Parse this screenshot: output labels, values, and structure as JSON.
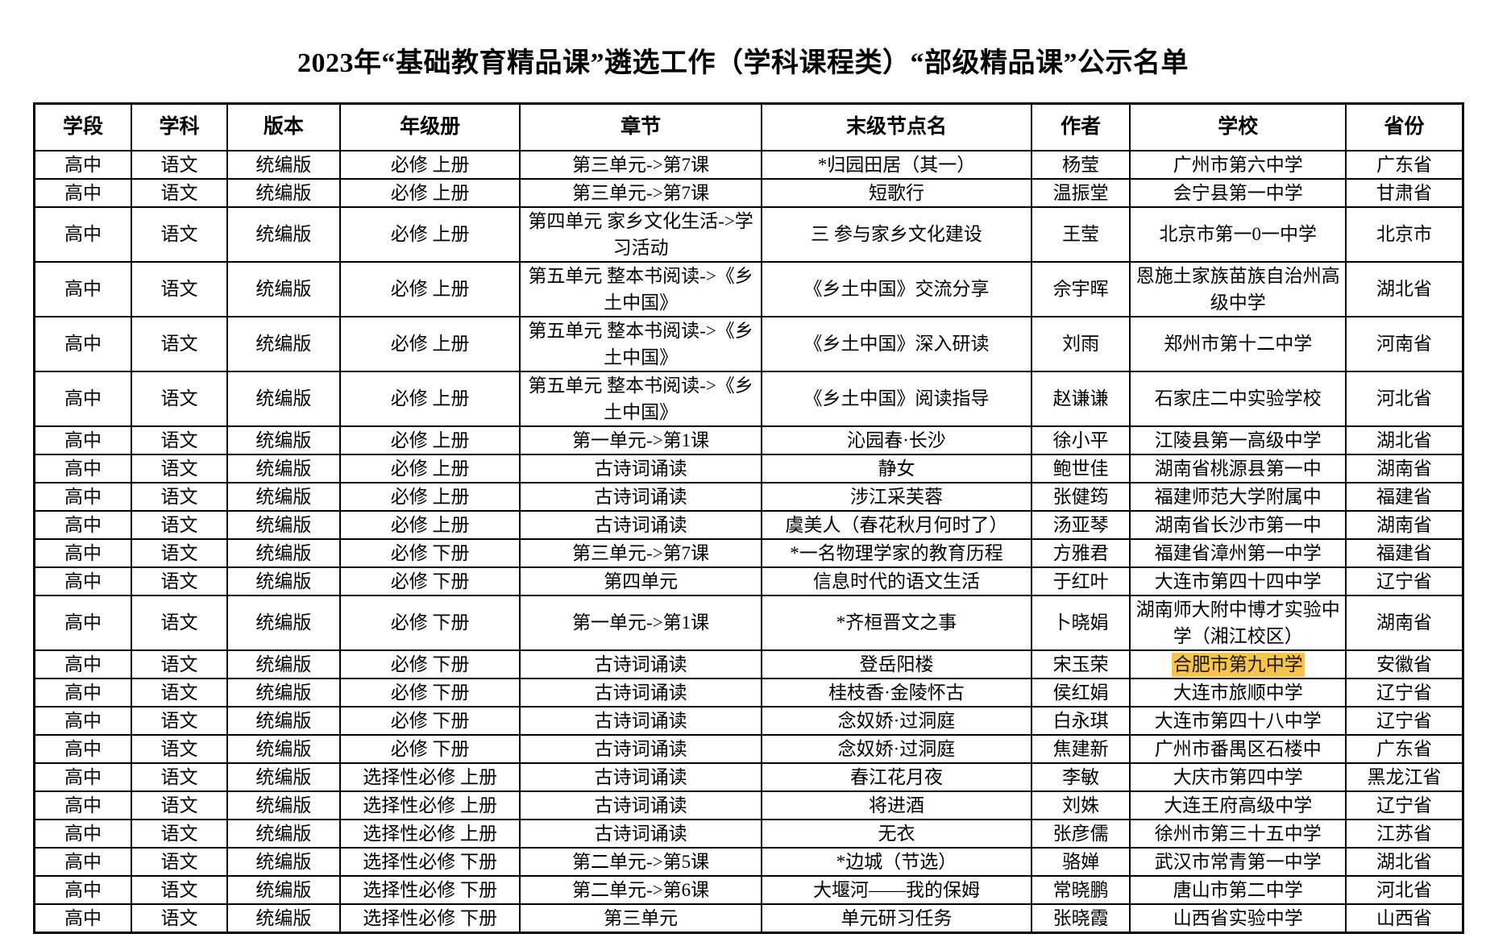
{
  "page": {
    "title": "2023年“基础教育精品课”遴选工作（学科课程类）“部级精品课”公示名单"
  },
  "table": {
    "columns": [
      {
        "key": "stage",
        "label": "学段"
      },
      {
        "key": "subject",
        "label": "学科"
      },
      {
        "key": "edition",
        "label": "版本"
      },
      {
        "key": "volume",
        "label": "年级册"
      },
      {
        "key": "chapter",
        "label": "章节"
      },
      {
        "key": "node",
        "label": "末级节点名"
      },
      {
        "key": "author",
        "label": "作者"
      },
      {
        "key": "school",
        "label": "学校"
      },
      {
        "key": "province",
        "label": "省份"
      }
    ],
    "rows": [
      [
        "高中",
        "语文",
        "统编版",
        "必修 上册",
        "第三单元->第7课",
        "*归园田居（其一）",
        "杨莹",
        "广州市第六中学",
        "广东省"
      ],
      [
        "高中",
        "语文",
        "统编版",
        "必修 上册",
        "第三单元->第7课",
        "短歌行",
        "温振堂",
        "会宁县第一中学",
        "甘肃省"
      ],
      [
        "高中",
        "语文",
        "统编版",
        "必修 上册",
        "第四单元 家乡文化生活->学习活动",
        "三 参与家乡文化建设",
        "王莹",
        "北京市第一0一中学",
        "北京市"
      ],
      [
        "高中",
        "语文",
        "统编版",
        "必修 上册",
        "第五单元 整本书阅读->《乡土中国》",
        "《乡土中国》交流分享",
        "佘宇晖",
        "恩施土家族苗族自治州高级中学",
        "湖北省"
      ],
      [
        "高中",
        "语文",
        "统编版",
        "必修 上册",
        "第五单元 整本书阅读->《乡土中国》",
        "《乡土中国》深入研读",
        "刘雨",
        "郑州市第十二中学",
        "河南省"
      ],
      [
        "高中",
        "语文",
        "统编版",
        "必修 上册",
        "第五单元 整本书阅读->《乡土中国》",
        "《乡土中国》阅读指导",
        "赵谦谦",
        "石家庄二中实验学校",
        "河北省"
      ],
      [
        "高中",
        "语文",
        "统编版",
        "必修 上册",
        "第一单元->第1课",
        "沁园春·长沙",
        "徐小平",
        "江陵县第一高级中学",
        "湖北省"
      ],
      [
        "高中",
        "语文",
        "统编版",
        "必修 上册",
        "古诗词诵读",
        "静女",
        "鲍世佳",
        "湖南省桃源县第一中",
        "湖南省"
      ],
      [
        "高中",
        "语文",
        "统编版",
        "必修 上册",
        "古诗词诵读",
        "涉江采芙蓉",
        "张健筠",
        "福建师范大学附属中",
        "福建省"
      ],
      [
        "高中",
        "语文",
        "统编版",
        "必修 上册",
        "古诗词诵读",
        "虞美人（春花秋月何时了）",
        "汤亚琴",
        "湖南省长沙市第一中",
        "湖南省"
      ],
      [
        "高中",
        "语文",
        "统编版",
        "必修 下册",
        "第三单元->第7课",
        "*一名物理学家的教育历程",
        "方雅君",
        "福建省漳州第一中学",
        "福建省"
      ],
      [
        "高中",
        "语文",
        "统编版",
        "必修 下册",
        "第四单元",
        "信息时代的语文生活",
        "于红叶",
        "大连市第四十四中学",
        "辽宁省"
      ],
      [
        "高中",
        "语文",
        "统编版",
        "必修 下册",
        "第一单元->第1课",
        "*齐桓晋文之事",
        "卜晓娟",
        "湖南师大附中博才实验中学（湘江校区）",
        "湖南省"
      ],
      [
        "高中",
        "语文",
        "统编版",
        "必修 下册",
        "古诗词诵读",
        "登岳阳楼",
        "宋玉荣",
        "合肥市第九中学",
        "安徽省"
      ],
      [
        "高中",
        "语文",
        "统编版",
        "必修 下册",
        "古诗词诵读",
        "桂枝香·金陵怀古",
        "侯红娟",
        "大连市旅顺中学",
        "辽宁省"
      ],
      [
        "高中",
        "语文",
        "统编版",
        "必修 下册",
        "古诗词诵读",
        "念奴娇·过洞庭",
        "白永琪",
        "大连市第四十八中学",
        "辽宁省"
      ],
      [
        "高中",
        "语文",
        "统编版",
        "必修 下册",
        "古诗词诵读",
        "念奴娇·过洞庭",
        "焦建新",
        "广州市番禺区石楼中",
        "广东省"
      ],
      [
        "高中",
        "语文",
        "统编版",
        "选择性必修 上册",
        "古诗词诵读",
        "春江花月夜",
        "李敏",
        "大庆市第四中学",
        "黑龙江省"
      ],
      [
        "高中",
        "语文",
        "统编版",
        "选择性必修 上册",
        "古诗词诵读",
        "将进酒",
        "刘姝",
        "大连王府高级中学",
        "辽宁省"
      ],
      [
        "高中",
        "语文",
        "统编版",
        "选择性必修 上册",
        "古诗词诵读",
        "无衣",
        "张彦儒",
        "徐州市第三十五中学",
        "江苏省"
      ],
      [
        "高中",
        "语文",
        "统编版",
        "选择性必修 下册",
        "第二单元->第5课",
        "*边城（节选）",
        "骆婵",
        "武汉市常青第一中学",
        "湖北省"
      ],
      [
        "高中",
        "语文",
        "统编版",
        "选择性必修 下册",
        "第二单元->第6课",
        "大堰河——我的保姆",
        "常晓鹏",
        "唐山市第二中学",
        "河北省"
      ],
      [
        "高中",
        "语文",
        "统编版",
        "选择性必修 下册",
        "第三单元",
        "单元研习任务",
        "张晓霞",
        "山西省实验中学",
        "山西省"
      ]
    ],
    "highlight": {
      "row": 13,
      "col": 7,
      "color": "#F9C44E",
      "text_color": "#1a1a1a"
    }
  }
}
